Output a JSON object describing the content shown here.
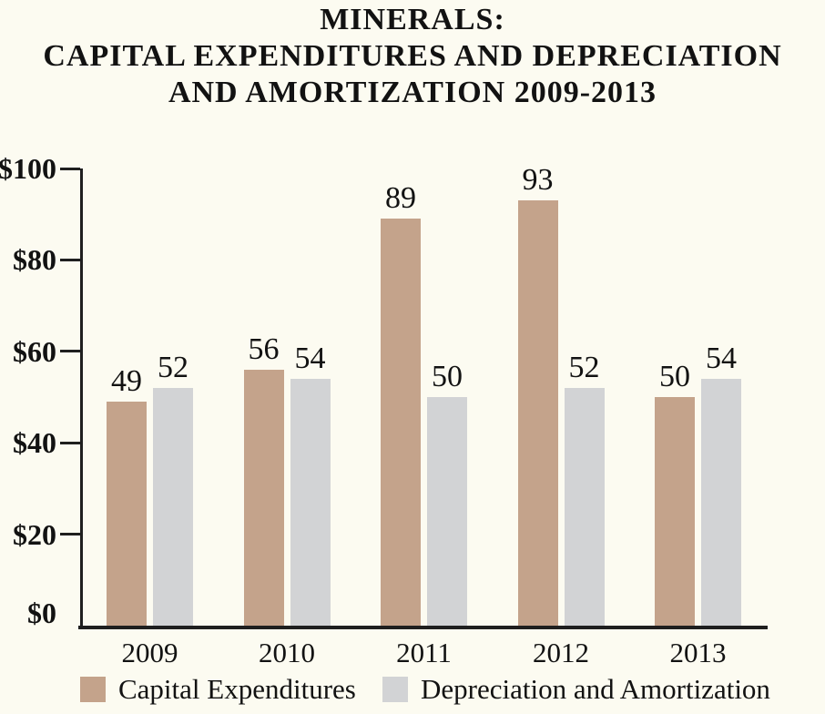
{
  "colors": {
    "background": "#fcfbf1",
    "axis": "#1f1f1f",
    "text": "#121212",
    "capital_expenditures": "#c4a38b",
    "depreciation_amortization": "#d2d3d5"
  },
  "title": {
    "lines": [
      "MINERALS:",
      "CAPITAL EXPENDITURES AND DEPRECIATION",
      "AND AMORTIZATION 2009-2013"
    ]
  },
  "chart_data": {
    "type": "bar",
    "title": "MINERALS: CAPITAL EXPENDITURES AND DEPRECIATION AND AMORTIZATION 2009-2013",
    "categories": [
      "2009",
      "2010",
      "2011",
      "2012",
      "2013"
    ],
    "series": [
      {
        "name": "Capital Expenditures",
        "color": "#c4a38b",
        "values": [
          49,
          56,
          89,
          93,
          50
        ]
      },
      {
        "name": "Depreciation and Amortization",
        "color": "#d2d3d5",
        "values": [
          52,
          54,
          50,
          52,
          54
        ]
      }
    ],
    "xlabel": "",
    "ylabel": "",
    "ylim": [
      0,
      100
    ],
    "yticks": [
      0,
      20,
      40,
      60,
      80,
      100
    ],
    "ytick_labels": [
      "$0",
      "$20",
      "$40",
      "$60",
      "$80",
      "$100"
    ],
    "grid": false,
    "value_labels": true,
    "legend_position": "bottom"
  }
}
